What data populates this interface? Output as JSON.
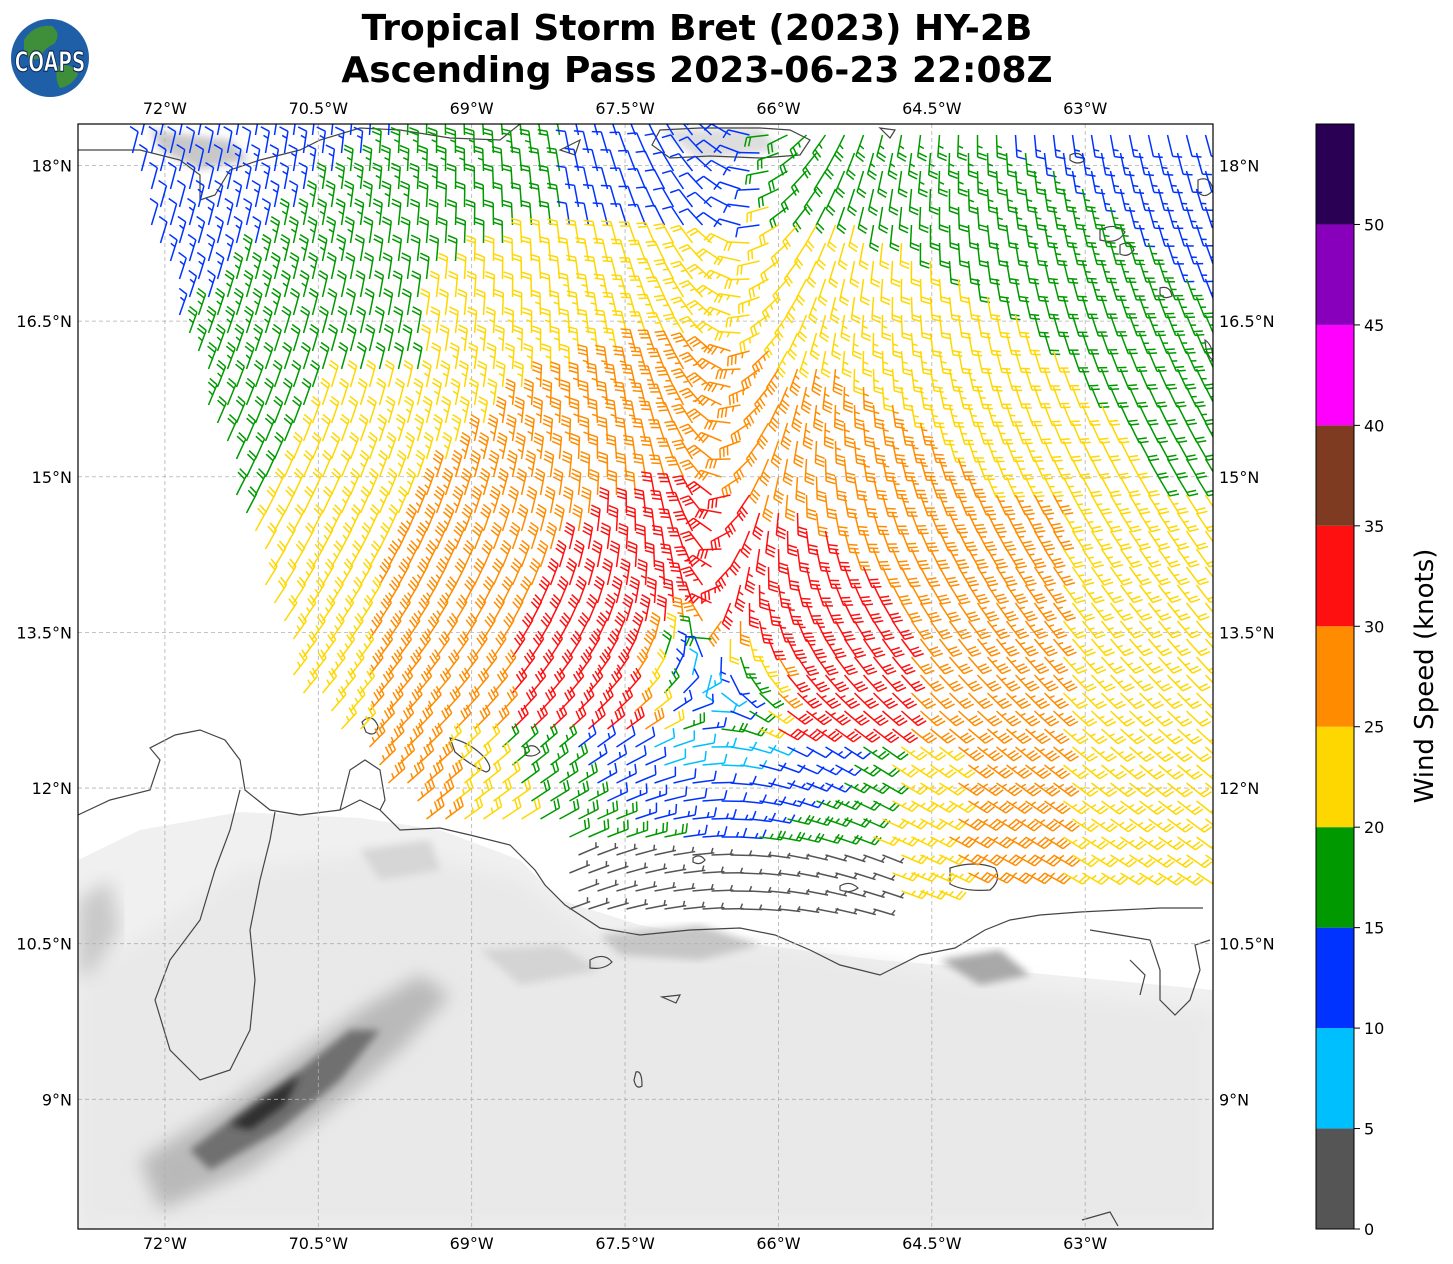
{
  "title": {
    "line1": "Tropical Storm Bret (2023) HY-2B",
    "line2": "Ascending Pass 2023-06-23 22:08Z"
  },
  "logo": {
    "text": "COAPS",
    "colors": {
      "ocean": "#1f5fa8",
      "land": "#3f8f3a"
    }
  },
  "map": {
    "lon_range": [
      -72.85,
      -61.75
    ],
    "lat_range": [
      7.75,
      18.4
    ],
    "lon_ticks": [
      {
        "value": -72,
        "label": "72°W"
      },
      {
        "value": -70.5,
        "label": "70.5°W"
      },
      {
        "value": -69,
        "label": "69°W"
      },
      {
        "value": -67.5,
        "label": "67.5°W"
      },
      {
        "value": -66,
        "label": "66°W"
      },
      {
        "value": -64.5,
        "label": "64.5°W"
      },
      {
        "value": -63,
        "label": "63°W"
      }
    ],
    "lat_ticks": [
      {
        "value": 18,
        "label": "18°N"
      },
      {
        "value": 16.5,
        "label": "16.5°N"
      },
      {
        "value": 15,
        "label": "15°N"
      },
      {
        "value": 13.5,
        "label": "13.5°N"
      },
      {
        "value": 12,
        "label": "12°N"
      },
      {
        "value": 10.5,
        "label": "10.5°N"
      },
      {
        "value": 9,
        "label": "9°N"
      }
    ],
    "grid": true,
    "gridline_color": "#b0b0b0",
    "coastline_color": "#444444"
  },
  "storm": {
    "center_lon": -66.7,
    "center_lat": 12.95
  },
  "colorbar": {
    "label": "Wind Speed (knots)",
    "bounds": [
      0,
      5,
      10,
      15,
      20,
      25,
      30,
      35,
      40,
      45,
      50,
      55
    ],
    "tick_labels": [
      "0",
      "5",
      "10",
      "15",
      "20",
      "25",
      "30",
      "35",
      "40",
      "45",
      "50"
    ],
    "colors": [
      "#555555",
      "#00bfff",
      "#0033ff",
      "#009900",
      "#ffd700",
      "#ff8c00",
      "#ff1010",
      "#7f3a22",
      "#ff00ff",
      "#8800bb",
      "#2a0055"
    ]
  }
}
